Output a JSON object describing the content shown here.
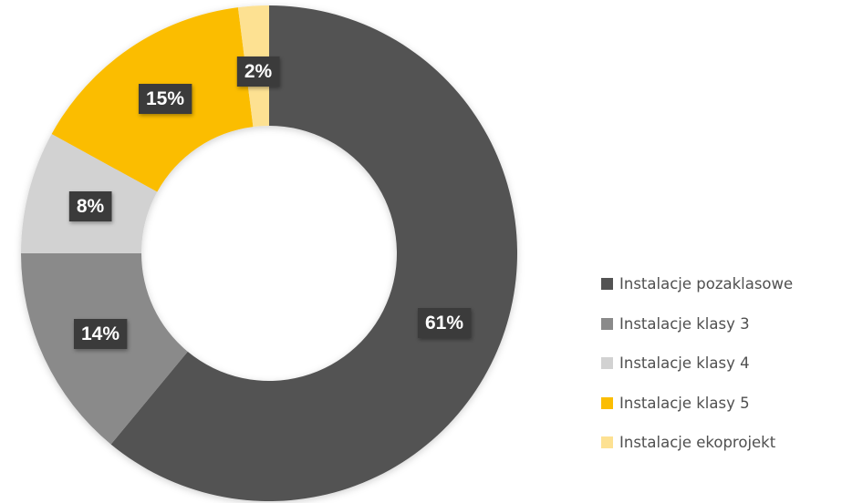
{
  "chart_data": {
    "type": "pie",
    "variant": "donut",
    "title": "",
    "categories": [
      "Instalacje pozaklasowe",
      "Instalacje klasy 3",
      "Instalacje klasy 4",
      "Instalacje klasy 5",
      "Instalacje ekoprojekt"
    ],
    "values": [
      61,
      14,
      8,
      15,
      2
    ],
    "value_labels": [
      "61%",
      "14%",
      "8%",
      "15%",
      "2%"
    ],
    "colors": [
      "#535353",
      "#8a8a8a",
      "#d2d2d2",
      "#fbbd02",
      "#fde192"
    ],
    "label_box_color": "#3a3a3a",
    "legend_placement": "right"
  }
}
